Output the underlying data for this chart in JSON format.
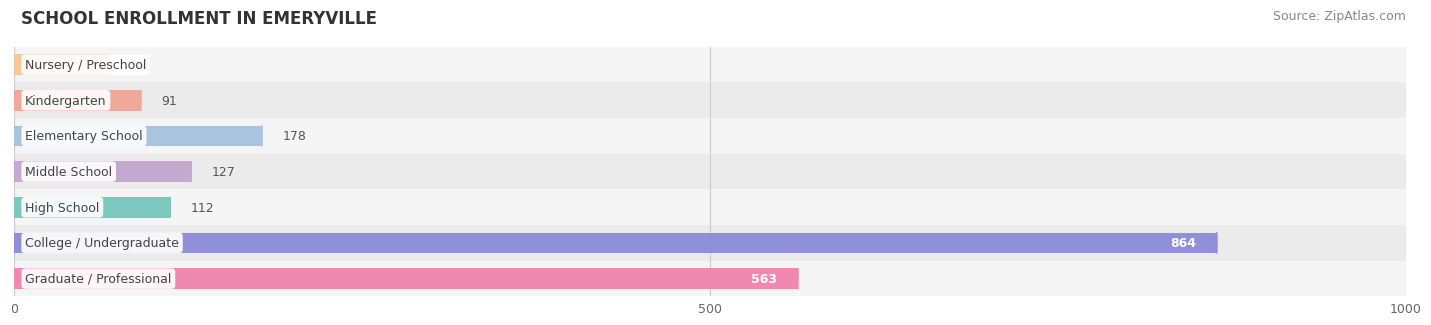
{
  "title": "SCHOOL ENROLLMENT IN EMERYVILLE",
  "source": "Source: ZipAtlas.com",
  "categories": [
    "Nursery / Preschool",
    "Kindergarten",
    "Elementary School",
    "Middle School",
    "High School",
    "College / Undergraduate",
    "Graduate / Professional"
  ],
  "values": [
    68,
    91,
    178,
    127,
    112,
    864,
    563
  ],
  "bar_colors": [
    "#f5c898",
    "#f0a898",
    "#a8c4e0",
    "#c4a8d0",
    "#7dc8be",
    "#9090d8",
    "#f088b0"
  ],
  "row_bg_colors": [
    "#f5f5f5",
    "#ebebeb"
  ],
  "xlim": [
    0,
    1000
  ],
  "xticks": [
    0,
    500,
    1000
  ],
  "label_color": "#444444",
  "title_fontsize": 12,
  "source_fontsize": 9,
  "bar_label_fontsize": 9,
  "value_color_inside": "#ffffff",
  "value_color_outside": "#555555"
}
